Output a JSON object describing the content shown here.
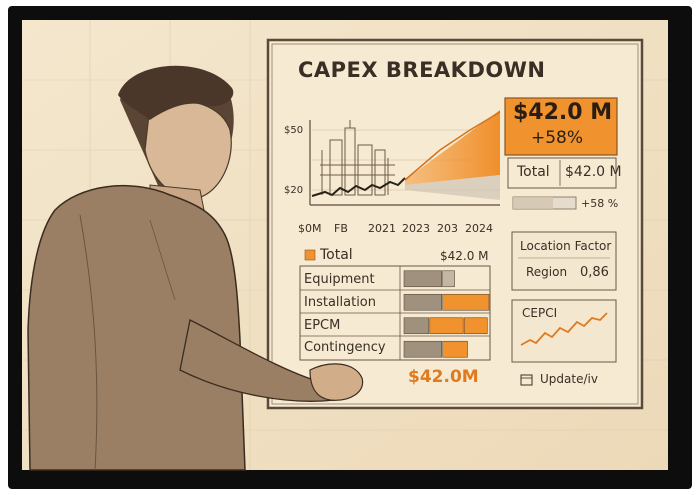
{
  "board": {
    "title": "CAPEX BREAKDOWN",
    "headline_value": "$42.0 M",
    "headline_change": "+58%",
    "summary_label": "Total",
    "summary_value": "$42.0 M",
    "bar_change": "+58 %"
  },
  "trend_chart": {
    "y_ticks": [
      "$50",
      "$20"
    ],
    "x_ticks": [
      "$0M",
      "FB",
      "2021",
      "2023",
      "203",
      "2024"
    ]
  },
  "breakdown": {
    "legend_label": "Total",
    "legend_value": "$42.0 M",
    "rows": [
      {
        "label": "Equipment",
        "segments": [
          0.45,
          0.15
        ]
      },
      {
        "label": "Installation",
        "segments": [
          0.45,
          0.55
        ]
      },
      {
        "label": "EPCM",
        "segments": [
          0.3,
          0.4,
          0.28
        ]
      },
      {
        "label": "Contingency",
        "segments": [
          0.45,
          0.3
        ]
      }
    ],
    "total": "$42.0M"
  },
  "location_card": {
    "title": "Location Factor",
    "label": "Region",
    "value": "0,86"
  },
  "cepci_card": {
    "title": "CEPCI"
  },
  "update_button": {
    "label": "Update/iv"
  },
  "colors": {
    "orange": "#f0922e",
    "paper": "#f3e6cc",
    "ink": "#3a2f25"
  }
}
